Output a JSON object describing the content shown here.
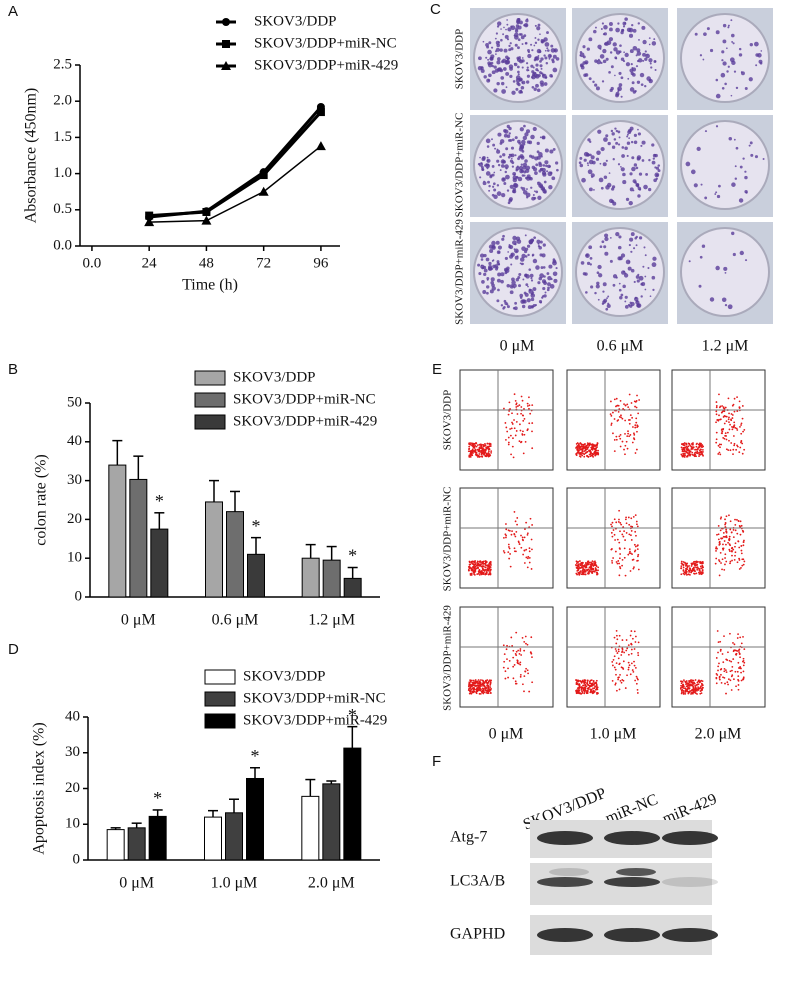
{
  "panel_labels": [
    "A",
    "B",
    "C",
    "D",
    "E",
    "F"
  ],
  "chart_data": [
    {
      "type": "line",
      "xlabel": "Time  (h)",
      "ylabel": "Absorbance (450nm)",
      "x": [
        24,
        48,
        72,
        96
      ],
      "series": [
        {
          "name": "SKOV3/DDP",
          "color": "#000000",
          "marker": "circle",
          "values": [
            0.4,
            0.48,
            1.02,
            1.92
          ]
        },
        {
          "name": "SKOV3/DDP+miR-NC",
          "color": "#000000",
          "marker": "square",
          "values": [
            0.42,
            0.47,
            0.98,
            1.85
          ]
        },
        {
          "name": "SKOV3/DDP+miR-429",
          "color": "#000000",
          "marker": "triangle",
          "values": [
            0.33,
            0.35,
            0.75,
            1.38
          ]
        }
      ],
      "xlim": [
        -5,
        104
      ],
      "xticks": [
        {
          "value": 0,
          "label": "0.0"
        },
        24,
        48,
        72,
        96
      ],
      "ylim": [
        0,
        2.5
      ],
      "yticks": [
        {
          "value": 0,
          "label": "0.0"
        },
        0.5,
        {
          "value": 1,
          "label": "1.0"
        },
        1.5,
        {
          "value": 2,
          "label": "2.0"
        },
        2.5
      ]
    },
    {
      "type": "bar",
      "ylabel": "colon rate (%)",
      "categories": [
        "0 μM",
        "0.6 μM",
        "1.2 μM"
      ],
      "series": [
        {
          "name": "SKOV3/DDP",
          "color": "#a6a6a6",
          "values": [
            34,
            24.5,
            10
          ],
          "errors": [
            6.3,
            5.5,
            3.5
          ]
        },
        {
          "name": "SKOV3/DDP+miR-NC",
          "color": "#6e6e6e",
          "values": [
            30.3,
            22,
            9.5
          ],
          "errors": [
            6,
            5.2,
            3.5
          ]
        },
        {
          "name": "SKOV3/DDP+miR-429",
          "color": "#3a3a3a",
          "values": [
            17.5,
            11,
            4.8
          ],
          "errors": [
            4.2,
            4.3,
            2.8
          ],
          "significance": [
            "*",
            "*",
            "*"
          ]
        }
      ],
      "ylim": [
        0,
        50
      ],
      "yticks": [
        0,
        10,
        20,
        30,
        40,
        50
      ]
    },
    {
      "type": "bar",
      "ylabel": "Apoptosis index (%)",
      "categories": [
        "0 μM",
        "1.0 μM",
        "2.0 μM"
      ],
      "series": [
        {
          "name": "SKOV3/DDP",
          "color": "#ffffff",
          "values": [
            8.5,
            12,
            17.8
          ],
          "errors": [
            0.5,
            1.8,
            4.7
          ]
        },
        {
          "name": "SKOV3/DDP+miR-NC",
          "color": "#404040",
          "values": [
            9,
            13.2,
            21.3
          ],
          "errors": [
            1.3,
            3.8,
            0.8
          ]
        },
        {
          "name": "SKOV3/DDP+miR-429",
          "color": "#000000",
          "values": [
            12.2,
            22.8,
            31.3
          ],
          "errors": [
            1.8,
            3,
            6
          ],
          "significance": [
            "*",
            "*",
            "*"
          ]
        }
      ],
      "ylim": [
        0,
        40
      ],
      "yticks": [
        0,
        10,
        20,
        30,
        40
      ]
    }
  ],
  "colony_assay": {
    "row_labels": [
      "SKOV3/DDP",
      "SKOV3/DDP+miR-NC",
      "SKOV3/DDP+miR-429"
    ],
    "column_labels": [
      "0 μM",
      "0.6 μM",
      "1.2 μM"
    ]
  },
  "flow_cytometry": {
    "row_labels": [
      "SKOV3/DDP",
      "SKOV3/DDP+miR-NC",
      "SKOV3/DDP+miR-429"
    ],
    "column_labels": [
      "0 μM",
      "1.0 μM",
      "2.0 μM"
    ]
  },
  "western_blot": {
    "lane_labels": [
      "SKOV3/DDP",
      "miR-NC",
      "miR-429"
    ],
    "row_labels": [
      "Atg-7",
      "LC3A/B",
      "GAPHD"
    ]
  }
}
